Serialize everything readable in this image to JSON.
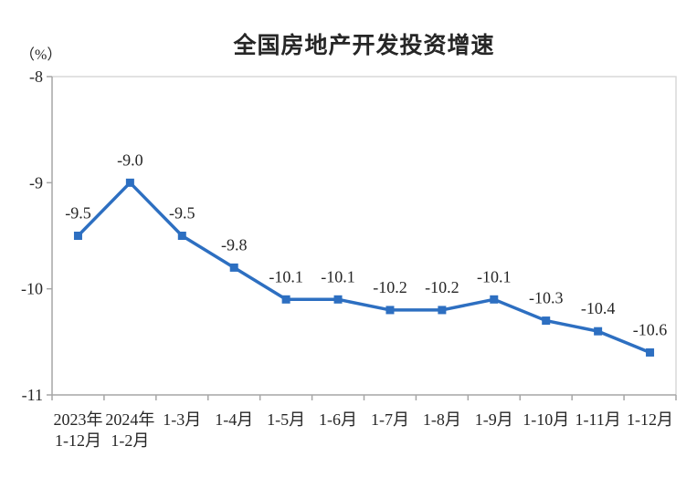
{
  "chart_data": {
    "type": "line",
    "title": "全国房地产开发投资增速",
    "ylabel": "（%）",
    "categories": [
      "2023年\n1-12月",
      "2024年\n1-2月",
      "1-3月",
      "1-4月",
      "1-5月",
      "1-6月",
      "1-7月",
      "1-8月",
      "1-9月",
      "1-10月",
      "1-11月",
      "1-12月"
    ],
    "values": [
      -9.5,
      -9.0,
      -9.5,
      -9.8,
      -10.1,
      -10.1,
      -10.2,
      -10.2,
      -10.1,
      -10.3,
      -10.4,
      -10.6
    ],
    "data_labels": [
      "-9.5",
      "-9.0",
      "-9.5",
      "-9.8",
      "-10.1",
      "-10.1",
      "-10.2",
      "-10.2",
      "-10.1",
      "-10.3",
      "-10.4",
      "-10.6"
    ],
    "ylim": [
      -11,
      -8
    ],
    "yticks": [
      -8,
      -9,
      -10,
      -11
    ],
    "ytick_labels": [
      "-8",
      "-9",
      "-10",
      "-11"
    ],
    "grid": false,
    "legend": null,
    "line_color": "#2D6FC1",
    "marker_color": "#2D6FC1",
    "axis_color": "#a6a6a6",
    "frame_color": "#d9d9d9",
    "text_color": "#262626"
  }
}
